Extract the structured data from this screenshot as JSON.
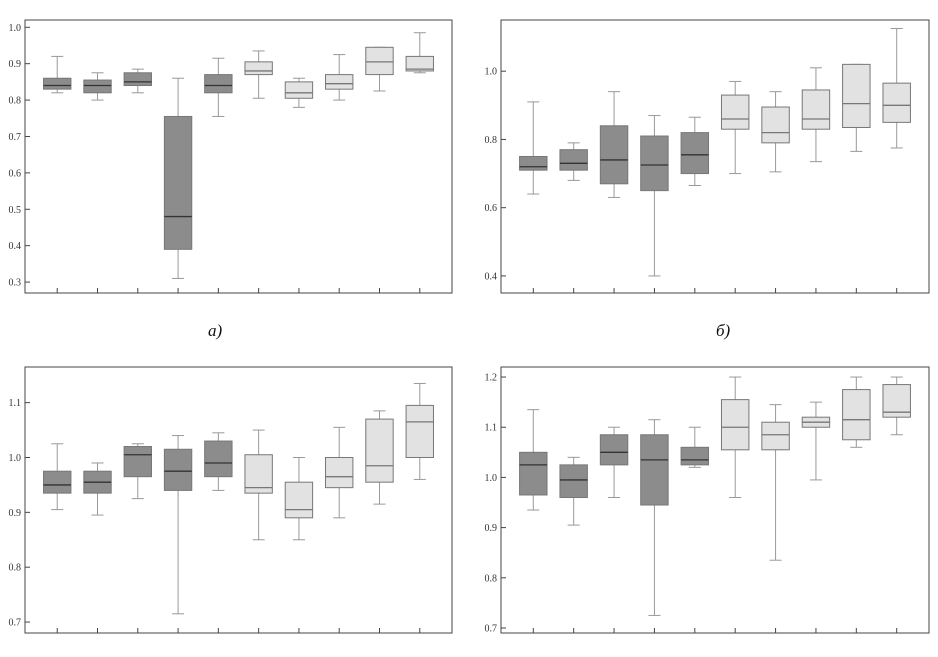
{
  "figure": {
    "colors": {
      "dark": "#8c8c8c",
      "light": "#e2e2e2",
      "median_dark": "#333333",
      "median_light": "#777777"
    }
  },
  "chart_data": [
    {
      "type": "boxplot",
      "panel_label": "a)",
      "yticks": [
        "0.3",
        "0.4",
        "0.5",
        "0.6",
        "0.7",
        "0.8",
        "0.9",
        "1.0"
      ],
      "ylim": [
        0.27,
        1.02
      ],
      "boxes": [
        {
          "min": 0.82,
          "q1": 0.83,
          "median": 0.84,
          "q3": 0.86,
          "max": 0.92,
          "shade": "dark"
        },
        {
          "min": 0.8,
          "q1": 0.82,
          "median": 0.84,
          "q3": 0.855,
          "max": 0.875,
          "shade": "dark"
        },
        {
          "min": 0.82,
          "q1": 0.84,
          "median": 0.85,
          "q3": 0.875,
          "max": 0.885,
          "shade": "dark"
        },
        {
          "min": 0.31,
          "q1": 0.39,
          "median": 0.48,
          "q3": 0.755,
          "max": 0.86,
          "shade": "dark"
        },
        {
          "min": 0.755,
          "q1": 0.82,
          "median": 0.84,
          "q3": 0.87,
          "max": 0.915,
          "shade": "dark"
        },
        {
          "min": 0.805,
          "q1": 0.87,
          "median": 0.88,
          "q3": 0.905,
          "max": 0.935,
          "shade": "light"
        },
        {
          "min": 0.78,
          "q1": 0.805,
          "median": 0.82,
          "q3": 0.85,
          "max": 0.86,
          "shade": "light"
        },
        {
          "min": 0.8,
          "q1": 0.83,
          "median": 0.845,
          "q3": 0.87,
          "max": 0.925,
          "shade": "light"
        },
        {
          "min": 0.825,
          "q1": 0.87,
          "median": 0.905,
          "q3": 0.945,
          "max": 0.945,
          "shade": "light"
        },
        {
          "min": 0.875,
          "q1": 0.88,
          "median": 0.885,
          "q3": 0.92,
          "max": 0.985,
          "shade": "light"
        }
      ]
    },
    {
      "type": "boxplot",
      "panel_label": "б)",
      "yticks": [
        "0.4",
        "0.6",
        "0.8",
        "1.0"
      ],
      "ylim": [
        0.35,
        1.15
      ],
      "boxes": [
        {
          "min": 0.64,
          "q1": 0.71,
          "median": 0.72,
          "q3": 0.75,
          "max": 0.91,
          "shade": "dark"
        },
        {
          "min": 0.68,
          "q1": 0.71,
          "median": 0.73,
          "q3": 0.77,
          "max": 0.79,
          "shade": "dark"
        },
        {
          "min": 0.63,
          "q1": 0.67,
          "median": 0.74,
          "q3": 0.84,
          "max": 0.94,
          "shade": "dark"
        },
        {
          "min": 0.4,
          "q1": 0.65,
          "median": 0.725,
          "q3": 0.81,
          "max": 0.87,
          "shade": "dark"
        },
        {
          "min": 0.665,
          "q1": 0.7,
          "median": 0.755,
          "q3": 0.82,
          "max": 0.865,
          "shade": "dark"
        },
        {
          "min": 0.7,
          "q1": 0.83,
          "median": 0.86,
          "q3": 0.93,
          "max": 0.97,
          "shade": "light"
        },
        {
          "min": 0.705,
          "q1": 0.79,
          "median": 0.82,
          "q3": 0.895,
          "max": 0.94,
          "shade": "light"
        },
        {
          "min": 0.735,
          "q1": 0.83,
          "median": 0.86,
          "q3": 0.945,
          "max": 1.01,
          "shade": "light"
        },
        {
          "min": 0.765,
          "q1": 0.835,
          "median": 0.905,
          "q3": 1.02,
          "max": 1.02,
          "shade": "light"
        },
        {
          "min": 0.775,
          "q1": 0.85,
          "median": 0.9,
          "q3": 0.965,
          "max": 1.125,
          "shade": "light"
        }
      ]
    },
    {
      "type": "boxplot",
      "panel_label": "",
      "yticks": [
        "0.7",
        "0.8",
        "0.9",
        "1.0",
        "1.1"
      ],
      "ylim": [
        0.68,
        1.165
      ],
      "boxes": [
        {
          "min": 0.905,
          "q1": 0.935,
          "median": 0.95,
          "q3": 0.975,
          "max": 1.025,
          "shade": "dark"
        },
        {
          "min": 0.895,
          "q1": 0.935,
          "median": 0.955,
          "q3": 0.975,
          "max": 0.99,
          "shade": "dark"
        },
        {
          "min": 0.925,
          "q1": 0.965,
          "median": 1.005,
          "q3": 1.02,
          "max": 1.025,
          "shade": "dark"
        },
        {
          "min": 0.715,
          "q1": 0.94,
          "median": 0.975,
          "q3": 1.015,
          "max": 1.04,
          "shade": "dark"
        },
        {
          "min": 0.94,
          "q1": 0.965,
          "median": 0.99,
          "q3": 1.03,
          "max": 1.045,
          "shade": "dark"
        },
        {
          "min": 0.85,
          "q1": 0.935,
          "median": 0.945,
          "q3": 1.005,
          "max": 1.05,
          "shade": "light"
        },
        {
          "min": 0.85,
          "q1": 0.89,
          "median": 0.905,
          "q3": 0.955,
          "max": 1.0,
          "shade": "light"
        },
        {
          "min": 0.89,
          "q1": 0.945,
          "median": 0.965,
          "q3": 1.0,
          "max": 1.055,
          "shade": "light"
        },
        {
          "min": 0.915,
          "q1": 0.955,
          "median": 0.985,
          "q3": 1.07,
          "max": 1.085,
          "shade": "light"
        },
        {
          "min": 0.96,
          "q1": 1.0,
          "median": 1.065,
          "q3": 1.095,
          "max": 1.135,
          "shade": "light"
        }
      ]
    },
    {
      "type": "boxplot",
      "panel_label": "",
      "yticks": [
        "0.7",
        "0.8",
        "0.9",
        "1.0",
        "1.1",
        "1.2"
      ],
      "ylim": [
        0.69,
        1.22
      ],
      "boxes": [
        {
          "min": 0.935,
          "q1": 0.965,
          "median": 1.025,
          "q3": 1.05,
          "max": 1.135,
          "shade": "dark"
        },
        {
          "min": 0.905,
          "q1": 0.96,
          "median": 0.995,
          "q3": 1.025,
          "max": 1.04,
          "shade": "dark"
        },
        {
          "min": 0.96,
          "q1": 1.025,
          "median": 1.05,
          "q3": 1.085,
          "max": 1.1,
          "shade": "dark"
        },
        {
          "min": 0.725,
          "q1": 0.945,
          "median": 1.035,
          "q3": 1.085,
          "max": 1.115,
          "shade": "dark"
        },
        {
          "min": 1.02,
          "q1": 1.025,
          "median": 1.035,
          "q3": 1.06,
          "max": 1.1,
          "shade": "dark"
        },
        {
          "min": 0.96,
          "q1": 1.055,
          "median": 1.1,
          "q3": 1.155,
          "max": 1.2,
          "shade": "light"
        },
        {
          "min": 0.835,
          "q1": 1.055,
          "median": 1.085,
          "q3": 1.11,
          "max": 1.145,
          "shade": "light"
        },
        {
          "min": 0.995,
          "q1": 1.1,
          "median": 1.11,
          "q3": 1.12,
          "max": 1.15,
          "shade": "light"
        },
        {
          "min": 1.06,
          "q1": 1.075,
          "median": 1.115,
          "q3": 1.175,
          "max": 1.2,
          "shade": "light"
        },
        {
          "min": 1.085,
          "q1": 1.12,
          "median": 1.13,
          "q3": 1.185,
          "max": 1.2,
          "shade": "light"
        }
      ]
    }
  ]
}
